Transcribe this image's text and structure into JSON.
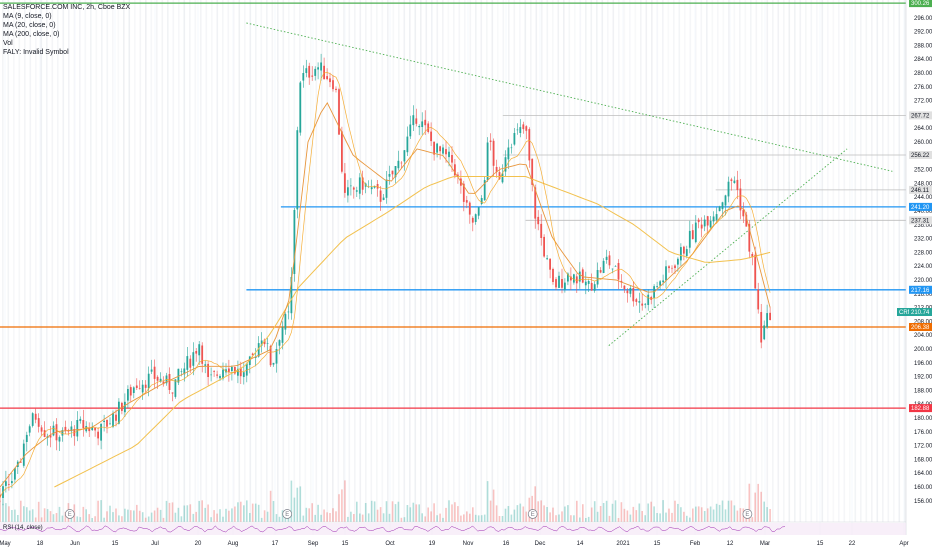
{
  "legend": {
    "symbol": "SALESFORCE.COM INC, 2h, Cboe BZX",
    "ma9": "MA (9, close, 0)",
    "ma20": "MA (20, close, 0)",
    "ma200": "MA (200, close, 0)",
    "vol": "Vol",
    "faly": "FALY: Invalid Symbol"
  },
  "rsi_label": "RSI (14, close)",
  "colors": {
    "candle_up": "#26a69a",
    "candle_down": "#ef5350",
    "ma9": "#f5a623",
    "ma20": "#e8963c",
    "ma200": "#f2c14e",
    "blue_level": "#2196f3",
    "green_level": "#4caf50",
    "red_level": "#f23645",
    "orange_level": "#ef6c00",
    "grey_level": "#bdbdbd",
    "trendline": "#4caf50",
    "rsi": "#9c27b0"
  },
  "chart_data": {
    "type": "candlestick",
    "x_ticks": [
      "May",
      "18",
      "Jun",
      "15",
      "Jul",
      "20",
      "Aug",
      "17",
      "Sep",
      "15",
      "Oct",
      "19",
      "Nov",
      "16",
      "Dec",
      "14",
      "2021",
      "15",
      "Feb",
      "12",
      "Mar",
      "15",
      "22",
      "Apr"
    ],
    "y_ticks": [
      156.0,
      160.0,
      164.0,
      168.0,
      172.0,
      176.0,
      180.0,
      184.0,
      188.0,
      192.0,
      196.0,
      200.0,
      204.0,
      208.0,
      212.0,
      216.0,
      220.0,
      224.0,
      228.0,
      232.0,
      236.0,
      240.0,
      244.0,
      248.0,
      252.0,
      256.0,
      260.0,
      264.0,
      268.0,
      272.0,
      276.0,
      280.0,
      284.0,
      288.0,
      292.0,
      296.0
    ],
    "ylim": [
      154,
      300
    ],
    "price_markers": [
      {
        "label": "300.26",
        "value": 300.26,
        "color": "#4caf50"
      },
      {
        "label": "267.72",
        "value": 267.72,
        "color": "#e0e0e0"
      },
      {
        "label": "256.22",
        "value": 256.22,
        "color": "#e0e0e0"
      },
      {
        "label": "246.11",
        "value": 246.11,
        "color": "#e0e0e0"
      },
      {
        "label": "241.20",
        "value": 241.2,
        "color": "#2196f3"
      },
      {
        "label": "237.31",
        "value": 237.31,
        "color": "#e0e0e0"
      },
      {
        "label": "217.16",
        "value": 217.16,
        "color": "#2196f3"
      },
      {
        "label": "CRM",
        "value": 210.74,
        "color": "#26a69a"
      },
      {
        "label": "210.74",
        "value": 210.74,
        "color": "#26a69a"
      },
      {
        "label": "206.38",
        "value": 206.38,
        "color": "#ef6c00"
      },
      {
        "label": "182.88",
        "value": 182.88,
        "color": "#f23645"
      }
    ],
    "horizontal_levels": [
      {
        "value": 300.26,
        "from": "May",
        "color": "#4caf50"
      },
      {
        "value": 267.72,
        "from": "Nov 16",
        "color": "#bdbdbd"
      },
      {
        "value": 256.22,
        "from": "Nov 16",
        "color": "#bdbdbd"
      },
      {
        "value": 246.11,
        "from": "Feb",
        "color": "#bdbdbd"
      },
      {
        "value": 241.2,
        "from": "Aug 17",
        "color": "#2196f3"
      },
      {
        "value": 237.31,
        "from": "Dec",
        "color": "#bdbdbd"
      },
      {
        "value": 217.16,
        "from": "Aug",
        "color": "#2196f3"
      },
      {
        "value": 206.38,
        "from": "May",
        "color": "#ef6c00"
      },
      {
        "value": 182.88,
        "from": "May",
        "color": "#f23645"
      }
    ],
    "trendlines": [
      {
        "from": [
          "Aug",
          294.5
        ],
        "to": [
          "Apr",
          251.5
        ],
        "color": "#4caf50"
      },
      {
        "from": [
          "Jan 15",
          201.0
        ],
        "to": [
          "Mar 15",
          258.0
        ],
        "color": "#4caf50"
      }
    ],
    "price_path": [
      [
        0.0,
        157.0
      ],
      [
        0.02,
        165.0
      ],
      [
        0.03,
        177.0
      ],
      [
        0.04,
        181.0
      ],
      [
        0.05,
        176.0
      ],
      [
        0.07,
        175.0
      ],
      [
        0.09,
        178.0
      ],
      [
        0.11,
        176.0
      ],
      [
        0.13,
        182.0
      ],
      [
        0.15,
        190.0
      ],
      [
        0.17,
        192.0
      ],
      [
        0.19,
        189.0
      ],
      [
        0.21,
        197.0
      ],
      [
        0.22,
        202.0
      ],
      [
        0.23,
        190.0
      ],
      [
        0.25,
        196.0
      ],
      [
        0.26,
        194.0
      ],
      [
        0.27,
        192.0
      ],
      [
        0.28,
        198.0
      ],
      [
        0.29,
        205.0
      ],
      [
        0.3,
        195.0
      ],
      [
        0.31,
        206.0
      ],
      [
        0.32,
        210.0
      ],
      [
        0.325,
        240.0
      ],
      [
        0.33,
        278.0
      ],
      [
        0.35,
        282.0
      ],
      [
        0.37,
        277.0
      ],
      [
        0.38,
        244.0
      ],
      [
        0.4,
        248.0
      ],
      [
        0.42,
        244.0
      ],
      [
        0.44,
        254.0
      ],
      [
        0.46,
        268.0
      ],
      [
        0.48,
        258.0
      ],
      [
        0.5,
        254.0
      ],
      [
        0.52,
        236.0
      ],
      [
        0.53,
        240.0
      ],
      [
        0.54,
        262.0
      ],
      [
        0.55,
        246.0
      ],
      [
        0.56,
        260.0
      ],
      [
        0.58,
        264.0
      ],
      [
        0.59,
        240.0
      ],
      [
        0.61,
        218.0
      ],
      [
        0.63,
        222.0
      ],
      [
        0.65,
        218.0
      ],
      [
        0.67,
        226.0
      ],
      [
        0.69,
        218.0
      ],
      [
        0.71,
        213.0
      ],
      [
        0.73,
        220.0
      ],
      [
        0.75,
        227.0
      ],
      [
        0.77,
        236.0
      ],
      [
        0.79,
        240.0
      ],
      [
        0.81,
        250.0
      ],
      [
        0.82,
        239.0
      ],
      [
        0.83,
        226.0
      ],
      [
        0.84,
        203.0
      ],
      [
        0.85,
        210.74
      ]
    ],
    "ma200_path": [
      [
        0.06,
        160.0
      ],
      [
        0.15,
        172.0
      ],
      [
        0.2,
        185.0
      ],
      [
        0.27,
        195.0
      ],
      [
        0.3,
        205.0
      ],
      [
        0.33,
        218.0
      ],
      [
        0.38,
        232.0
      ],
      [
        0.43,
        240.0
      ],
      [
        0.47,
        247.0
      ],
      [
        0.5,
        250.0
      ],
      [
        0.54,
        250.0
      ],
      [
        0.58,
        250.0
      ],
      [
        0.62,
        246.0
      ],
      [
        0.66,
        242.0
      ],
      [
        0.7,
        236.0
      ],
      [
        0.74,
        228.0
      ],
      [
        0.78,
        225.0
      ],
      [
        0.82,
        226.0
      ],
      [
        0.85,
        228.0
      ]
    ],
    "ma20_path": [
      [
        0.0,
        160.0
      ],
      [
        0.03,
        170.0
      ],
      [
        0.06,
        176.0
      ],
      [
        0.1,
        177.0
      ],
      [
        0.14,
        184.0
      ],
      [
        0.18,
        190.0
      ],
      [
        0.22,
        195.0
      ],
      [
        0.26,
        195.0
      ],
      [
        0.3,
        200.0
      ],
      [
        0.32,
        215.0
      ],
      [
        0.34,
        260.0
      ],
      [
        0.36,
        272.0
      ],
      [
        0.39,
        256.0
      ],
      [
        0.43,
        248.0
      ],
      [
        0.46,
        258.0
      ],
      [
        0.49,
        256.0
      ],
      [
        0.52,
        244.0
      ],
      [
        0.55,
        252.0
      ],
      [
        0.58,
        254.0
      ],
      [
        0.61,
        232.0
      ],
      [
        0.64,
        221.0
      ],
      [
        0.68,
        220.0
      ],
      [
        0.72,
        216.0
      ],
      [
        0.76,
        226.0
      ],
      [
        0.8,
        240.0
      ],
      [
        0.82,
        242.0
      ],
      [
        0.84,
        222.0
      ],
      [
        0.85,
        212.0
      ]
    ],
    "event_markers": [
      {
        "x": "Jun",
        "label": "E"
      },
      {
        "x": "Aug 17",
        "label": "E"
      },
      {
        "x": "Dec",
        "label": "E"
      },
      {
        "x": "Feb 12",
        "label": "E"
      }
    ],
    "legend_placement": "top-left"
  }
}
